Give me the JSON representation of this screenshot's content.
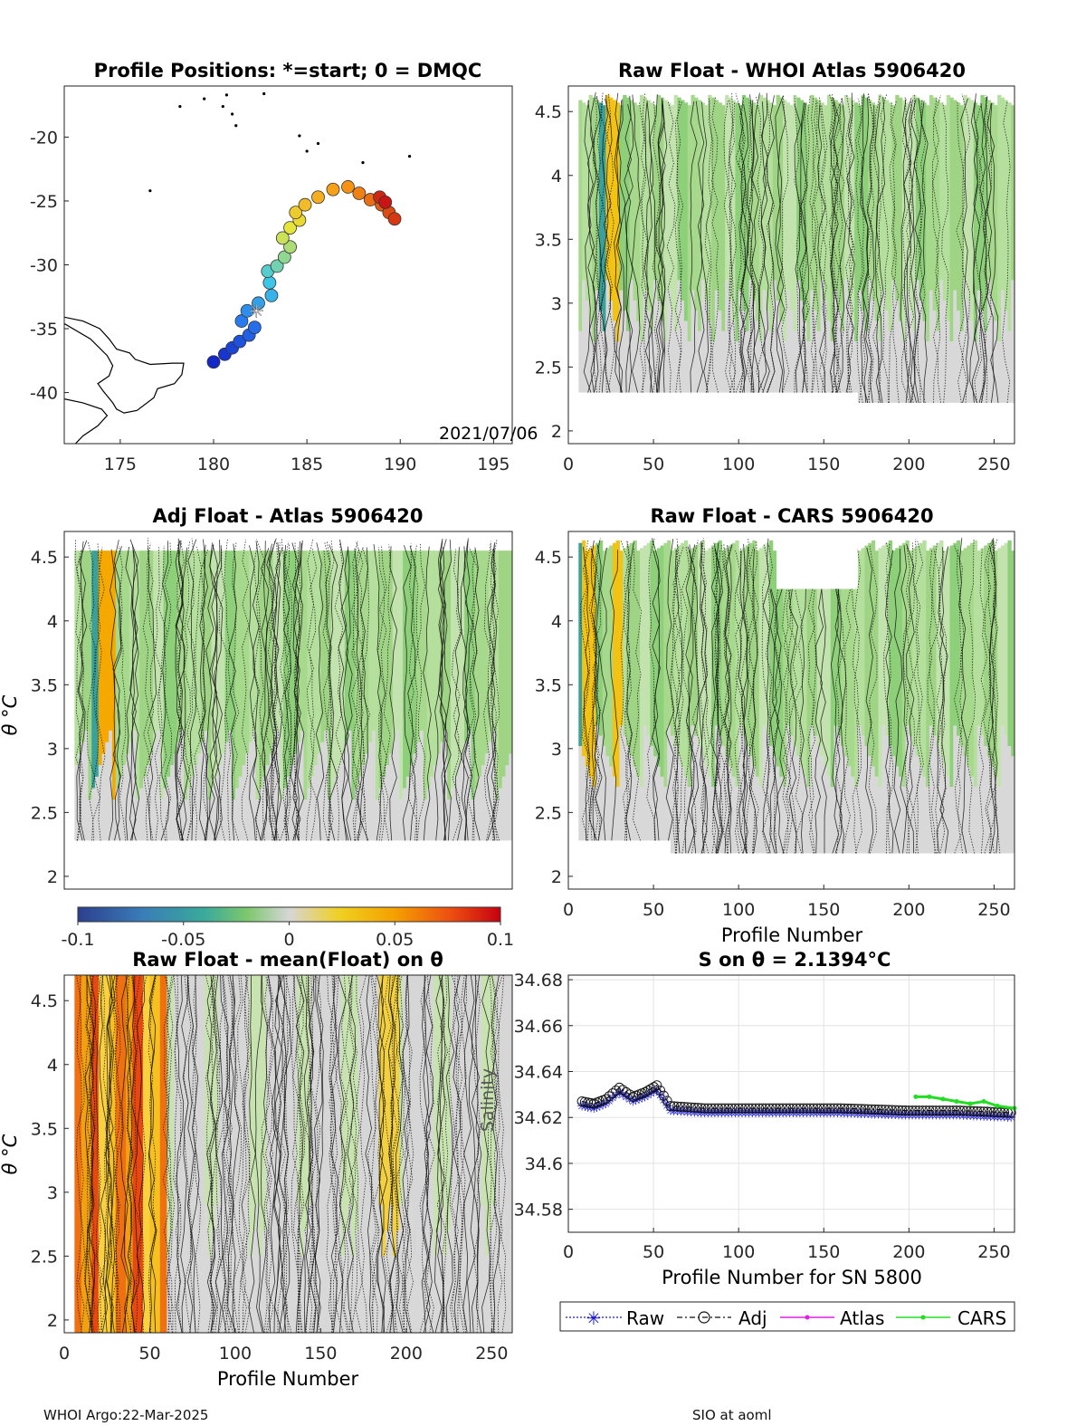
{
  "panels": {
    "map": {
      "title": "Profile Positions: *=start; 0 = DMQC",
      "date_label": "2021/07/06",
      "xticks": [
        "175",
        "180",
        "185",
        "190",
        "195"
      ],
      "yticks": [
        "-20",
        "-25",
        "-30",
        "-35",
        "-40"
      ],
      "xlim": [
        172,
        196
      ],
      "ylim": [
        -44,
        -16
      ]
    },
    "raw_atlas": {
      "title": "Raw Float - WHOI Atlas  5906420",
      "xticks": [
        "0",
        "50",
        "100",
        "150",
        "200",
        "250"
      ],
      "yticks": [
        "2",
        "2.5",
        "3",
        "3.5",
        "4",
        "4.5"
      ]
    },
    "adj_atlas": {
      "title": "Adj Float - Atlas  5906420",
      "ylabel": "θ °C",
      "yticks": [
        "2",
        "2.5",
        "3",
        "3.5",
        "4",
        "4.5"
      ]
    },
    "raw_cars": {
      "title": "Raw Float - CARS  5906420",
      "xlabel": "Profile Number",
      "xticks": [
        "0",
        "50",
        "100",
        "150",
        "200",
        "250"
      ],
      "yticks": [
        "2",
        "2.5",
        "3",
        "3.5",
        "4",
        "4.5"
      ]
    },
    "raw_mean": {
      "title": "Raw Float - mean(Float) on θ",
      "xlabel": "Profile Number",
      "ylabel": "θ °C",
      "xticks": [
        "0",
        "50",
        "100",
        "150",
        "200",
        "250"
      ],
      "yticks": [
        "2",
        "2.5",
        "3",
        "3.5",
        "4",
        "4.5"
      ]
    },
    "salinity": {
      "title": "S on θ = 2.1394°C",
      "xlabel": "Profile Number for SN 5800",
      "ylabel": "Salinity",
      "xticks": [
        "0",
        "50",
        "100",
        "150",
        "200",
        "250"
      ],
      "yticks": [
        "34.58",
        "34.6",
        "34.62",
        "34.64",
        "34.66",
        "34.68"
      ],
      "legend": [
        "Raw",
        "Adj",
        "Atlas",
        "CARS"
      ]
    }
  },
  "colorbar": {
    "ticks": [
      "-0.1",
      "-0.05",
      "0",
      "0.05",
      "0.1"
    ],
    "range": [
      -0.1,
      0.1
    ]
  },
  "colors": {
    "raw": "#1a1ad0",
    "adj": "#111111",
    "atlas": "#e020e0",
    "cars": "#22dd22",
    "pos_anomaly": "#d01010",
    "neg_anomaly": "#3050a0",
    "light_green": "#a8dc90",
    "neutral_gray": "#d6d6d6"
  },
  "footer": {
    "left": "WHOI Argo:22-Mar-2025",
    "right": "SIO at aoml"
  },
  "chart_data": [
    {
      "type": "scatter",
      "title": "Profile Positions: *=start; 0 = DMQC",
      "xlim": [
        172,
        196
      ],
      "ylim": [
        -44,
        -16
      ],
      "start_marker": {
        "lon": 182.3,
        "lat": -33.6
      },
      "track": [
        {
          "lon": 180.0,
          "lat": -37.6
        },
        {
          "lon": 180.6,
          "lat": -37.0
        },
        {
          "lon": 181.0,
          "lat": -36.5
        },
        {
          "lon": 181.4,
          "lat": -36.0
        },
        {
          "lon": 181.9,
          "lat": -35.5
        },
        {
          "lon": 182.2,
          "lat": -34.9
        },
        {
          "lon": 181.5,
          "lat": -34.4
        },
        {
          "lon": 181.8,
          "lat": -33.6
        },
        {
          "lon": 182.4,
          "lat": -33.0
        },
        {
          "lon": 183.1,
          "lat": -32.4
        },
        {
          "lon": 183.0,
          "lat": -31.4
        },
        {
          "lon": 182.9,
          "lat": -30.5
        },
        {
          "lon": 183.4,
          "lat": -30.1
        },
        {
          "lon": 183.8,
          "lat": -29.4
        },
        {
          "lon": 184.1,
          "lat": -28.6
        },
        {
          "lon": 183.7,
          "lat": -27.9
        },
        {
          "lon": 184.1,
          "lat": -27.1
        },
        {
          "lon": 184.6,
          "lat": -26.5
        },
        {
          "lon": 184.4,
          "lat": -25.9
        },
        {
          "lon": 184.9,
          "lat": -25.3
        },
        {
          "lon": 185.6,
          "lat": -24.7
        },
        {
          "lon": 186.4,
          "lat": -24.1
        },
        {
          "lon": 187.2,
          "lat": -23.9
        },
        {
          "lon": 187.8,
          "lat": -24.4
        },
        {
          "lon": 188.4,
          "lat": -24.9
        },
        {
          "lon": 189.0,
          "lat": -25.3
        },
        {
          "lon": 189.4,
          "lat": -25.9
        },
        {
          "lon": 189.7,
          "lat": -26.4
        },
        {
          "lon": 188.9,
          "lat": -24.7
        },
        {
          "lon": 189.2,
          "lat": -25.1
        }
      ]
    },
    {
      "type": "heatmap",
      "title": "Raw Float - WHOI Atlas  5906420",
      "xlim": [
        0,
        262
      ],
      "ylim": [
        1.9,
        4.7
      ],
      "colorbar_range": [
        -0.1,
        0.1
      ]
    },
    {
      "type": "heatmap",
      "title": "Adj Float - Atlas  5906420",
      "ylabel": "θ °C",
      "xlim": [
        0,
        262
      ],
      "ylim": [
        1.9,
        4.7
      ],
      "colorbar_range": [
        -0.1,
        0.1
      ]
    },
    {
      "type": "heatmap",
      "title": "Raw Float - CARS  5906420",
      "xlabel": "Profile Number",
      "xlim": [
        0,
        262
      ],
      "ylim": [
        1.9,
        4.7
      ],
      "colorbar_range": [
        -0.1,
        0.1
      ]
    },
    {
      "type": "heatmap",
      "title": "Raw Float - mean(Float) on θ",
      "xlabel": "Profile Number",
      "ylabel": "θ °C",
      "xlim": [
        0,
        262
      ],
      "ylim": [
        1.9,
        4.7
      ],
      "colorbar_range": [
        -0.1,
        0.1
      ]
    },
    {
      "type": "line",
      "title": "S on θ = 2.1394°C",
      "xlabel": "Profile Number for SN 5800",
      "ylabel": "Salinity",
      "xlim": [
        0,
        262
      ],
      "ylim": [
        34.57,
        34.682
      ],
      "grid": true,
      "legend_placement": "below",
      "series": [
        {
          "name": "Raw",
          "x": [
            8,
            15,
            22,
            30,
            38,
            45,
            52,
            60,
            80,
            100,
            130,
            160,
            200,
            230,
            262
          ],
          "values": [
            34.625,
            34.624,
            34.626,
            34.631,
            34.627,
            34.629,
            34.632,
            34.623,
            34.622,
            34.622,
            34.622,
            34.622,
            34.621,
            34.621,
            34.62
          ]
        },
        {
          "name": "Adj",
          "x": [
            8,
            15,
            22,
            30,
            38,
            45,
            52,
            60,
            80,
            100,
            130,
            160,
            200,
            230,
            262
          ],
          "values": [
            34.627,
            34.626,
            34.628,
            34.633,
            34.629,
            34.631,
            34.634,
            34.625,
            34.624,
            34.624,
            34.624,
            34.624,
            34.623,
            34.623,
            34.622
          ]
        },
        {
          "name": "Atlas",
          "x": [],
          "values": []
        },
        {
          "name": "CARS",
          "x": [
            204,
            212,
            220,
            228,
            236,
            244,
            252,
            262
          ],
          "values": [
            34.629,
            34.629,
            34.628,
            34.627,
            34.626,
            34.627,
            34.625,
            34.624
          ]
        }
      ]
    }
  ]
}
